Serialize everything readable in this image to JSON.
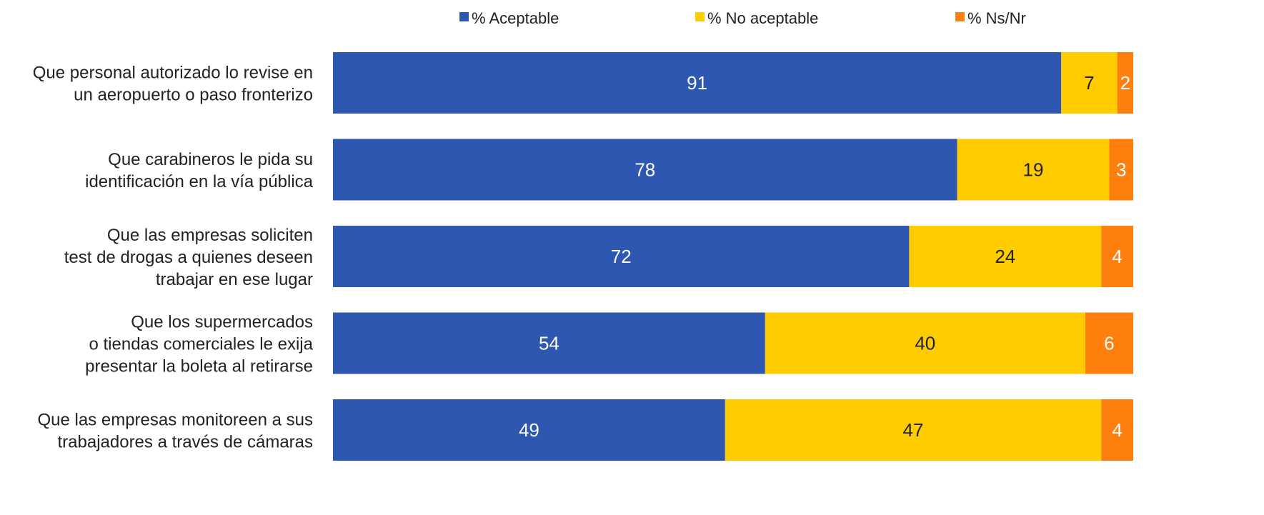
{
  "chart_data": {
    "type": "bar",
    "orientation": "horizontal",
    "stacked": true,
    "title": "",
    "xlabel": "",
    "ylabel": "",
    "xlim": [
      0,
      100
    ],
    "grid": false,
    "legend_position": "top",
    "categories": [
      "Que personal autorizado lo revise en un aeropuerto o paso fronterizo",
      "Que carabineros le pida su identificación en la vía pública",
      "Que las empresas soliciten test de drogas a quienes deseen trabajar en ese lugar",
      "Que los supermercados o tiendas comerciales le exija presentar la boleta al retirarse",
      "Que las empresas monitoreen a sus trabajadores a través de cámaras"
    ],
    "category_lines": [
      [
        "Que personal autorizado lo revise en",
        "un aeropuerto o paso fronterizo"
      ],
      [
        "Que carabineros le pida su",
        "identificación en la vía pública"
      ],
      [
        "Que las empresas soliciten",
        "test de drogas a quienes deseen",
        "trabajar en ese lugar"
      ],
      [
        "Que los supermercados",
        "o tiendas comerciales le exija",
        "presentar la boleta al retirarse"
      ],
      [
        "Que las empresas monitoreen a sus",
        "trabajadores a través de cámaras"
      ]
    ],
    "series": [
      {
        "name": "% Aceptable",
        "color": "#2E57B1",
        "label_color": "#ffffff",
        "values": [
          91,
          78,
          72,
          54,
          49
        ]
      },
      {
        "name": "% No aceptable",
        "color": "#FFCC00",
        "label_color": "#222222",
        "values": [
          7,
          19,
          24,
          40,
          47
        ]
      },
      {
        "name": "% Ns/Nr",
        "color": "#FF7F0E",
        "label_color": "#ffffff",
        "values": [
          2,
          3,
          4,
          6,
          4
        ]
      }
    ]
  }
}
